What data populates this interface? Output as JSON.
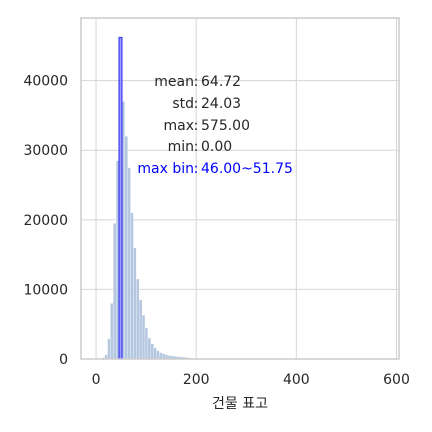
{
  "chart_data": {
    "type": "bar",
    "xlabel": "건물 표고",
    "ylabel": "",
    "xlim": [
      -30,
      605
    ],
    "ylim": [
      0,
      49000
    ],
    "xticks": [
      0,
      200,
      400,
      600
    ],
    "yticks": [
      0,
      10000,
      20000,
      30000,
      40000
    ],
    "grid": true,
    "bins": [
      {
        "start": 11.5,
        "end": 17.25,
        "count": 200
      },
      {
        "start": 17.25,
        "end": 23.0,
        "count": 600
      },
      {
        "start": 23.0,
        "end": 28.75,
        "count": 2900
      },
      {
        "start": 28.75,
        "end": 34.5,
        "count": 8000
      },
      {
        "start": 34.5,
        "end": 40.25,
        "count": 19500
      },
      {
        "start": 40.25,
        "end": 46.0,
        "count": 28500
      },
      {
        "start": 46.0,
        "end": 51.75,
        "count": 46200
      },
      {
        "start": 51.75,
        "end": 57.5,
        "count": 37000
      },
      {
        "start": 57.5,
        "end": 63.25,
        "count": 32000
      },
      {
        "start": 63.25,
        "end": 69.0,
        "count": 27500
      },
      {
        "start": 69.0,
        "end": 74.75,
        "count": 21000
      },
      {
        "start": 74.75,
        "end": 80.5,
        "count": 16000
      },
      {
        "start": 80.5,
        "end": 86.25,
        "count": 11500
      },
      {
        "start": 86.25,
        "end": 92.0,
        "count": 8500
      },
      {
        "start": 92.0,
        "end": 97.75,
        "count": 6300
      },
      {
        "start": 97.75,
        "end": 103.5,
        "count": 4500
      },
      {
        "start": 103.5,
        "end": 109.25,
        "count": 3000
      },
      {
        "start": 109.25,
        "end": 115.0,
        "count": 2200
      },
      {
        "start": 115.0,
        "end": 120.75,
        "count": 1600
      },
      {
        "start": 120.75,
        "end": 126.5,
        "count": 1200
      },
      {
        "start": 126.5,
        "end": 132.25,
        "count": 900
      },
      {
        "start": 132.25,
        "end": 138.0,
        "count": 750
      },
      {
        "start": 138.0,
        "end": 143.75,
        "count": 600
      },
      {
        "start": 143.75,
        "end": 149.5,
        "count": 500
      },
      {
        "start": 149.5,
        "end": 155.25,
        "count": 450
      },
      {
        "start": 155.25,
        "end": 161.0,
        "count": 400
      },
      {
        "start": 161.0,
        "end": 166.75,
        "count": 350
      },
      {
        "start": 166.75,
        "end": 172.5,
        "count": 300
      },
      {
        "start": 172.5,
        "end": 178.25,
        "count": 280
      },
      {
        "start": 178.25,
        "end": 184.0,
        "count": 220
      },
      {
        "start": 184.0,
        "end": 189.75,
        "count": 150
      },
      {
        "start": 189.75,
        "end": 195.5,
        "count": 90
      },
      {
        "start": 195.5,
        "end": 201.25,
        "count": 50
      }
    ],
    "highlight_bin_index": 6,
    "colors": {
      "bars": "#b0c4de",
      "highlight_fill": "#8f8ff7",
      "highlight_edge": "#3b3bf5",
      "grid": "#d5d5d5",
      "axis": "#cccccc",
      "max_bin_text": "#0000ff"
    },
    "annotations": [
      {
        "label": "mean",
        "value": "64.72"
      },
      {
        "label": "std",
        "value": "24.03"
      },
      {
        "label": "max",
        "value": "575.00"
      },
      {
        "label": "min",
        "value": "0.00"
      },
      {
        "label": "max bin",
        "value": "46.00~51.75"
      }
    ]
  }
}
